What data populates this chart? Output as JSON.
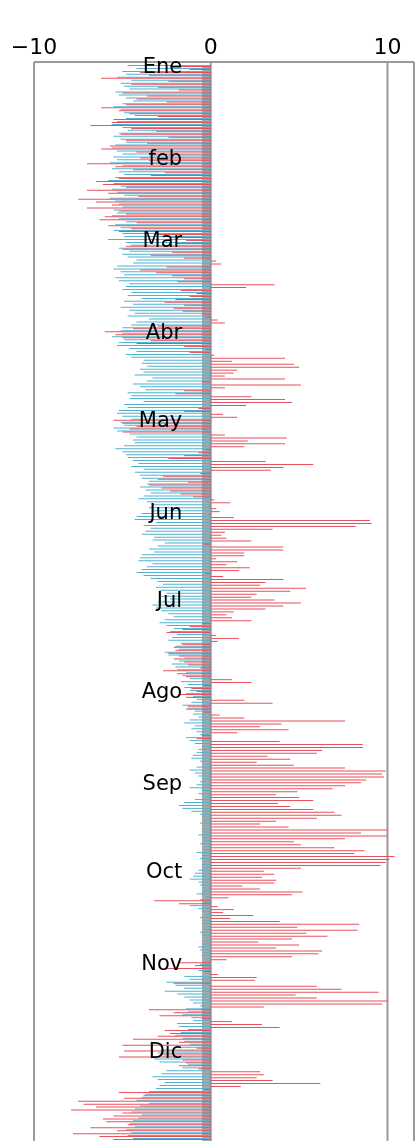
{
  "chart_data": {
    "type": "bar",
    "orientation": "horizontal",
    "categories": [
      "Ene",
      null,
      null,
      null,
      null,
      null,
      null,
      null,
      null,
      null,
      null,
      null,
      null,
      null,
      null,
      null,
      null,
      null,
      null,
      null,
      null,
      null,
      null,
      null,
      null,
      null,
      null,
      null,
      null,
      null,
      null,
      "feb",
      null,
      null,
      null,
      null,
      null,
      null,
      null,
      null,
      null,
      null,
      null,
      null,
      null,
      null,
      null,
      null,
      null,
      null,
      null,
      null,
      null,
      null,
      null,
      null,
      null,
      null,
      null,
      "Mar",
      null,
      null,
      null,
      null,
      null,
      null,
      null,
      null,
      null,
      null,
      null,
      null,
      null,
      null,
      null,
      null,
      null,
      null,
      null,
      null,
      null,
      null,
      null,
      null,
      null,
      null,
      null,
      null,
      null,
      null,
      "Abr",
      null,
      null,
      null,
      null,
      null,
      null,
      null,
      null,
      null,
      null,
      null,
      null,
      null,
      null,
      null,
      null,
      null,
      null,
      null,
      null,
      null,
      null,
      null,
      null,
      null,
      null,
      null,
      null,
      null,
      "May",
      null,
      null,
      null,
      null,
      null,
      null,
      null,
      null,
      null,
      null,
      null,
      null,
      null,
      null,
      null,
      null,
      null,
      null,
      null,
      null,
      null,
      null,
      null,
      null,
      null,
      null,
      null,
      null,
      null,
      null,
      "Jun",
      null,
      null,
      null,
      null,
      null,
      null,
      null,
      null,
      null,
      null,
      null,
      null,
      null,
      null,
      null,
      null,
      null,
      null,
      null,
      null,
      null,
      null,
      null,
      null,
      null,
      null,
      null,
      null,
      null,
      "Jul",
      null,
      null,
      null,
      null,
      null,
      null,
      null,
      null,
      null,
      null,
      null,
      null,
      null,
      null,
      null,
      null,
      null,
      null,
      null,
      null,
      null,
      null,
      null,
      null,
      null,
      null,
      null,
      null,
      null,
      null,
      "Ago",
      null,
      null,
      null,
      null,
      null,
      null,
      null,
      null,
      null,
      null,
      null,
      null,
      null,
      null,
      null,
      null,
      null,
      null,
      null,
      null,
      null,
      null,
      null,
      null,
      null,
      null,
      null,
      null,
      null,
      null,
      "Sep",
      null,
      null,
      null,
      null,
      null,
      null,
      null,
      null,
      null,
      null,
      null,
      null,
      null,
      null,
      null,
      null,
      null,
      null,
      null,
      null,
      null,
      null,
      null,
      null,
      null,
      null,
      null,
      null,
      null,
      "Oct",
      null,
      null,
      null,
      null,
      null,
      null,
      null,
      null,
      null,
      null,
      null,
      null,
      null,
      null,
      null,
      null,
      null,
      null,
      null,
      null,
      null,
      null,
      null,
      null,
      null,
      null,
      null,
      null,
      null,
      null,
      "Nov",
      null,
      null,
      null,
      null,
      null,
      null,
      null,
      null,
      null,
      null,
      null,
      null,
      null,
      null,
      null,
      null,
      null,
      null,
      null,
      null,
      null,
      null,
      null,
      null,
      null,
      null,
      null,
      null,
      null,
      "Dic",
      null,
      null,
      null,
      null,
      null,
      null,
      null,
      null,
      null,
      null,
      null,
      null,
      null,
      null,
      null,
      null,
      null,
      null,
      null,
      null,
      null,
      null,
      null,
      null,
      null,
      null,
      null,
      null,
      null,
      null
    ],
    "series": [
      {
        "color": "#4fb3d0",
        "values": [
          -4.7,
          -4.2,
          -5.0,
          -4.8,
          -5.3,
          -4.5,
          -5.1,
          -4.9,
          -4.6,
          -5.4,
          -5.2,
          -4.8,
          -4.4,
          -5.0,
          -5.5,
          -5.1,
          -4.9,
          -4.3,
          -4.8,
          -5.3,
          -5.6,
          -5.0,
          -4.7,
          -5.2,
          -5.5,
          -5.1,
          -4.8,
          -5.4,
          -5.6,
          -5.3,
          -5.0,
          -5.5,
          -5.3,
          -5.7,
          -5.0,
          -5.6,
          -5.2,
          -4.9,
          -5.4,
          -5.8,
          -5.5,
          -5.1,
          -5.6,
          -5.3,
          -4.9,
          -5.7,
          -5.4,
          -5.2,
          -5.0,
          -5.5,
          -5.3,
          -5.6,
          -5.2,
          -4.8,
          -5.4,
          -5.1,
          -5.5,
          -5.0,
          -4.9,
          -5.8,
          -4.8,
          -4.5,
          -5.2,
          -4.6,
          -5.0,
          -4.7,
          -4.2,
          -4.4,
          -5.3,
          -5.5,
          -5.1,
          -4.9,
          -5.4,
          -5.2,
          -4.6,
          -4.8,
          -5.0,
          -4.5,
          -4.7,
          -3.9,
          -4.9,
          -4.4,
          -5.1,
          -4.6,
          -4.3,
          -4.7,
          -3.5,
          -4.2,
          -4.5,
          -5.0,
          -5.1,
          -5.0,
          -5.6,
          -4.9,
          -5.2,
          -5.3,
          -4.6,
          -4.2,
          -4.8,
          -4.5,
          -3.8,
          -3.9,
          -3.6,
          -4.0,
          -3.8,
          -4.3,
          -3.3,
          -3.6,
          -4.4,
          -4.0,
          -3.7,
          -4.7,
          -4.5,
          -4.6,
          -3.8,
          -4.9,
          -4.7,
          -5.2,
          -5.3,
          -5.0,
          -4.5,
          -5.1,
          -4.9,
          -5.5,
          -5.3,
          -4.6,
          -4.2,
          -4.4,
          -4.3,
          -4.9,
          -5.4,
          -5.0,
          -4.8,
          -4.7,
          -4.4,
          -4.1,
          -4.5,
          -3.8,
          -4.3,
          -4.0,
          -3.9,
          -3.5,
          -3.6,
          -4.0,
          -3.7,
          -3.4,
          -3.8,
          -4.1,
          -3.6,
          -3.3,
          -3.5,
          -3.3,
          -3.9,
          -4.2,
          -4.3,
          -3.1,
          -3.8,
          -3.4,
          -3.7,
          -3.9,
          -3.2,
          -3.3,
          -2.6,
          -3.0,
          -3.5,
          -3.2,
          -3.9,
          -4.0,
          -4.1,
          -3.3,
          -3.6,
          -3.9,
          -4.2,
          -3.8,
          -3.4,
          -3.0,
          -2.7,
          -3.1,
          -2.9,
          -2.5,
          -2.8,
          -2.3,
          -3.0,
          -3.3,
          -3.1,
          -2.8,
          -2.4,
          -2.1,
          -2.6,
          -2.9,
          -2.5,
          -2.1,
          -2.3,
          -1.9,
          -2.2,
          -2.4,
          -1.7,
          -2.0,
          -1.8,
          -2.6,
          -2.4,
          -1.5,
          -1.8,
          -2.2,
          -2.0,
          -1.9,
          -1.4,
          -1.6,
          -1.2,
          -1.7,
          -1.3,
          -1.5,
          -1.2,
          -1.4,
          -1.0,
          -0.8,
          -1.1,
          -1.6,
          -1.3,
          -0.9,
          -1.0,
          -0.7,
          -1.2,
          -1.5,
          -0.9,
          -1.1,
          -0.8,
          -0.6,
          -1.4,
          -1.2,
          -0.9,
          -0.5,
          -0.7,
          -0.8,
          -1.0,
          -1.1,
          -0.6,
          -0.4,
          -0.8,
          -1.2,
          -0.9,
          -0.7,
          -0.5,
          -0.6,
          -0.8,
          -1.2,
          -0.5,
          -0.7,
          -0.4,
          -0.9,
          -1.5,
          -1.8,
          -1.6,
          -1.1,
          -0.6,
          -0.5,
          -0.4,
          -0.6,
          -0.3,
          -0.5,
          -0.4,
          -0.7,
          -0.5,
          -0.4,
          -0.6,
          -0.3,
          -0.4,
          -0.8,
          -0.5,
          -0.6,
          -0.4,
          -0.5,
          -0.3,
          -0.7,
          -0.9,
          -1.0,
          -1.2,
          -0.7,
          -0.6,
          -0.4,
          -0.5,
          -0.8,
          -0.3,
          -0.6,
          -0.4,
          -1.2,
          -0.7,
          -0.5,
          -0.3,
          -0.6,
          -0.4,
          -0.5,
          -0.3,
          -0.4,
          -0.6,
          -0.5,
          -0.3,
          -0.4,
          -0.5,
          -0.7,
          -0.6,
          -0.4,
          -0.5,
          -0.3,
          -0.4,
          -0.6,
          -0.5,
          -0.7,
          -0.3,
          -1.5,
          -1.2,
          -2.5,
          -2.0,
          -1.5,
          -2.6,
          -1.9,
          -1.5,
          -1.2,
          -1.0,
          -0.6,
          -1.4,
          -1.3,
          -1.6,
          -1.1,
          -1.0,
          -1.9,
          -1.8,
          -1.3,
          -1.7,
          -2.0,
          -1.6,
          -1.5,
          -1.2,
          -1.9,
          -2.8,
          -3.0,
          -2.7,
          -3.2,
          -2.9,
          -1.3,
          -1.6,
          -2.5,
          -2.8,
          -3.3,
          -3.0,
          -2.6,
          -2.9,
          -3.1,
          -3.5,
          -3.7,
          -3.9,
          -4.2,
          -3.5,
          -4.0,
          -4.3,
          -4.5,
          -3.9,
          -4.1,
          -4.4,
          -4.6,
          -4.3,
          -4.8,
          -4.5,
          -4.7,
          -4.4
        ]
      },
      {
        "color": "#e8505b",
        "values": [
          -2.3,
          -1.2,
          -4.0,
          -3.5,
          -6.2,
          -2.4,
          -4.5,
          -3.0,
          -1.8,
          -5.0,
          -3.6,
          -4.2,
          -2.5,
          -4.8,
          -6.2,
          -5.2,
          -4.6,
          -3.0,
          -5.5,
          -5.6,
          -6.8,
          -4.5,
          -3.1,
          -5.1,
          -2.4,
          -4.8,
          -3.6,
          -5.7,
          -6.2,
          -4.2,
          -3.5,
          -4.0,
          -3.5,
          -7.0,
          -5.4,
          -4.4,
          -2.6,
          -3.4,
          -5.2,
          -6.5,
          -6.1,
          -4.8,
          -7.0,
          -5.8,
          -4.1,
          -7.5,
          -6.5,
          -5.6,
          -7.0,
          -5.2,
          -4.8,
          -6.0,
          -6.3,
          -4.2,
          -5.8,
          -4.5,
          -5.2,
          -3.0,
          -2.3,
          -1.4,
          -2.0,
          -4.8,
          -5.0,
          -2.2,
          -3.4,
          -1.5,
          0.3,
          0.6,
          -2.5,
          -4.0,
          -3.1,
          -2.2,
          -1.5,
          -1.9,
          3.6,
          2.0,
          -1.7,
          -0.8,
          -1.2,
          -2.0,
          -2.6,
          -1.5,
          -2.1,
          -1.6,
          -0.5,
          -0.3,
          0.4,
          0.8,
          -3.0,
          -4.4,
          -6.0,
          -5.4,
          -5.0,
          -3.4,
          -4.2,
          -1.5,
          -0.3,
          -1.2,
          0.2,
          4.2,
          1.2,
          4.7,
          5.0,
          1.5,
          1.3,
          0.8,
          4.2,
          -0.5,
          5.1,
          0.8,
          -1.5,
          -2.0,
          2.3,
          4.2,
          4.6,
          2.0,
          -0.7,
          -1.5,
          0.7,
          1.5,
          -5.5,
          -5.0,
          -4.2,
          -4.6,
          -5.0,
          0.8,
          4.3,
          2.1,
          4.2,
          1.9,
          -0.3,
          -0.7,
          -1.5,
          -2.4,
          3.1,
          5.8,
          4.1,
          3.4,
          -0.6,
          -2.7,
          -3.0,
          -1.3,
          -3.5,
          -2.8,
          -2.3,
          -1.7,
          -1.0,
          0.2,
          1.1,
          -0.1,
          0.3,
          0.5,
          -0.1,
          1.3,
          9.0,
          9.1,
          8.2,
          3.5,
          0.8,
          0.6,
          0.9,
          2.3,
          -0.4,
          4.1,
          4.1,
          1.9,
          1.9,
          0.3,
          1.5,
          0.9,
          2.2,
          1.6,
          -0.3,
          0.7,
          4.1,
          3.1,
          2.8,
          5.4,
          4.5,
          2.6,
          2.3,
          3.6,
          5.1,
          4.1,
          3.1,
          1.3,
          0.9,
          1.2,
          2.3,
          -0.5,
          -1.2,
          -1.6,
          -2.5,
          0.3,
          1.6,
          0.4,
          -1.6,
          -2.1,
          -2.0,
          -2.4,
          -1.8,
          -2.1,
          -1.5,
          -1.3,
          -0.6,
          -2.7,
          -1.9,
          -1.4,
          1.2,
          2.3,
          -0.4,
          -1.1,
          -0.8,
          -1.8,
          -1.4,
          1.9,
          3.5,
          -1.3,
          -1.4,
          -0.4,
          0.5,
          1.9,
          7.6,
          4.0,
          2.8,
          4.4,
          1.5,
          -0.5,
          -0.8,
          3.9,
          8.6,
          8.6,
          6.3,
          6.0,
          3.2,
          4.5,
          2.6,
          4.7,
          7.6,
          9.9,
          9.7,
          9.8,
          8.8,
          8.5,
          7.6,
          6.9,
          4.9,
          3.7,
          5.0,
          5.8,
          3.8,
          4.5,
          5.8,
          7.0,
          7.4,
          6.0,
          3.7,
          2.8,
          4.4,
          10.0,
          8.5,
          10.0,
          7.6,
          4.7,
          5.1,
          7.0,
          8.7,
          8.1,
          10.4,
          10.1,
          9.9,
          9.6,
          5.1,
          3.0,
          3.6,
          2.9,
          3.7,
          3.6,
          1.8,
          2.8,
          5.2,
          4.6,
          1.0,
          -3.2,
          -1.8,
          0.4,
          1.3,
          0.7,
          2.4,
          1.1,
          3.9,
          8.4,
          4.9,
          8.3,
          5.4,
          6.6,
          4.6,
          2.7,
          5.0,
          3.7,
          6.3,
          6.1,
          4.6,
          0.9,
          -1.8,
          -0.9,
          -2.6,
          -0.4,
          0.4,
          2.6,
          2.5,
          -2.1,
          6.0,
          7.4,
          9.5,
          4.8,
          6.0,
          10.0,
          9.7,
          3.0,
          -3.5,
          -2.1,
          -2.9,
          -0.5,
          1.2,
          2.9,
          3.9,
          -2.6,
          -2.3,
          -3.0,
          -4.4,
          -1.8,
          -5.0,
          -0.8,
          -4.9,
          -2.7,
          -5.2,
          -1.6,
          -1.4,
          -1.8,
          -0.7,
          2.8,
          3.0,
          2.6,
          3.5,
          6.2,
          1.7,
          -0.4,
          -5.2,
          -3.8,
          -4.9,
          -7.5,
          -7.2,
          -6.5,
          -7.9,
          -5.0,
          -5.5,
          -6.1,
          -5.9,
          -4.7,
          -6.8,
          -5.3,
          -7.8,
          -6.3,
          -5.5
        ]
      }
    ],
    "xlim": [
      -10,
      11.5
    ],
    "xticks": [
      {
        "value": -10,
        "label": "−10"
      },
      0,
      10
    ],
    "grid": "x",
    "bands": [
      {
        "axis": "x",
        "from": -0.5,
        "to": 0,
        "color": "#8c8c8c"
      }
    ]
  }
}
